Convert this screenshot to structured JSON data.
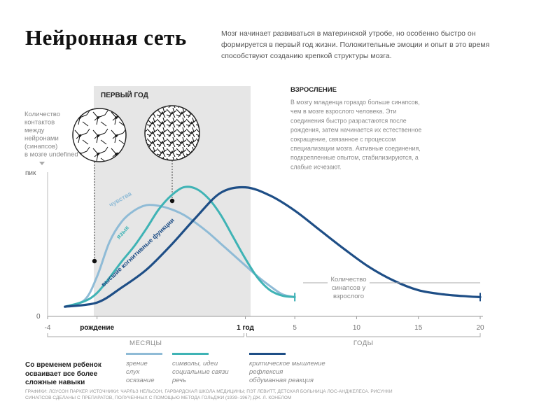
{
  "title": "Нейронная сеть",
  "intro": "Мозг начинает развиваться в материнской утробе, но особенно быстро он формируется в первый год жизни. Положительные эмоции и опыт в это время способствуют созданию крепкой структуры мозга.",
  "chart_data": {
    "type": "line",
    "title": "",
    "ylabel": "Количество контактов между нейронами (синапсов) в мозге",
    "y_ticks": [
      "пик",
      "0"
    ],
    "x_ticks": [
      {
        "pos": -4,
        "label": "-4"
      },
      {
        "pos": 0,
        "label": "рождение"
      },
      {
        "pos": 12,
        "label": "1 год"
      },
      {
        "pos": 16,
        "label": "5"
      },
      {
        "pos": 21,
        "label": "10"
      },
      {
        "pos": 26,
        "label": "15"
      },
      {
        "pos": 31,
        "label": "20"
      }
    ],
    "x_groups": [
      {
        "label": "МЕСЯЦЫ",
        "from": -4,
        "to": 12
      },
      {
        "label": "ГОДЫ",
        "from": 12,
        "to": 31
      }
    ],
    "xlim": [
      -4,
      31
    ],
    "ylim": [
      0,
      1
    ],
    "shaded_region": {
      "from": 0,
      "to": 12,
      "label": "ПЕРВЫЙ ГОД"
    },
    "series": [
      {
        "name": "чувства",
        "color": "#8fbbd6",
        "points": [
          [
            -2.6,
            0.03
          ],
          [
            -1,
            0.08
          ],
          [
            0,
            0.25
          ],
          [
            1,
            0.5
          ],
          [
            2,
            0.65
          ],
          [
            3,
            0.73
          ],
          [
            4,
            0.77
          ],
          [
            5,
            0.765
          ],
          [
            6,
            0.74
          ],
          [
            7,
            0.7
          ],
          [
            8,
            0.64
          ],
          [
            9,
            0.57
          ],
          [
            10,
            0.49
          ],
          [
            11,
            0.41
          ],
          [
            12,
            0.33
          ],
          [
            13,
            0.25
          ],
          [
            14,
            0.18
          ],
          [
            15,
            0.12
          ],
          [
            16,
            0.1
          ]
        ]
      },
      {
        "name": "язык",
        "color": "#3fb3b5",
        "points": [
          [
            -2.6,
            0.03
          ],
          [
            -1,
            0.07
          ],
          [
            0,
            0.13
          ],
          [
            1,
            0.24
          ],
          [
            2,
            0.36
          ],
          [
            3,
            0.47
          ],
          [
            4,
            0.6
          ],
          [
            5,
            0.74
          ],
          [
            6,
            0.84
          ],
          [
            7,
            0.9
          ],
          [
            8,
            0.89
          ],
          [
            9,
            0.82
          ],
          [
            10,
            0.7
          ],
          [
            11,
            0.54
          ],
          [
            12,
            0.38
          ],
          [
            13,
            0.24
          ],
          [
            14,
            0.15
          ],
          [
            15,
            0.11
          ],
          [
            16,
            0.1
          ]
        ]
      },
      {
        "name": "высшие когнитивные функции",
        "color": "#1e4e86",
        "points": [
          [
            -2.6,
            0.03
          ],
          [
            0,
            0.06
          ],
          [
            2,
            0.17
          ],
          [
            4,
            0.3
          ],
          [
            6,
            0.48
          ],
          [
            8,
            0.68
          ],
          [
            10,
            0.86
          ],
          [
            12,
            0.9
          ],
          [
            14,
            0.84
          ],
          [
            16,
            0.73
          ],
          [
            18,
            0.59
          ],
          [
            20,
            0.45
          ],
          [
            22,
            0.32
          ],
          [
            24,
            0.22
          ],
          [
            26,
            0.15
          ],
          [
            28,
            0.12
          ],
          [
            30,
            0.105
          ],
          [
            31,
            0.1
          ]
        ]
      }
    ],
    "annotations": {
      "adult_title": "ВЗРОСЛЕНИЕ",
      "adult_text": "В мозгу младенца гораздо больше синапсов, чем в мозге взрослого человека. Эти соединения быстро разрастаются после рождения, затем начинается их естественное сокращение, связанное с процессом специализации мозга. Активные соединения, подкрепленные опытом, стабилизируются, а слабые исчезают.",
      "adult_synapses": "Количество синапсов у взрослого"
    }
  },
  "legend": {
    "heading": "Со временем ребенок осваивает все более сложные навыки",
    "items": [
      {
        "color": "#8fbbd6",
        "lines": [
          "зрение",
          "слух",
          "осязание"
        ]
      },
      {
        "color": "#3fb3b5",
        "lines": [
          "символы, идеи",
          "социальные связи",
          "речь"
        ]
      },
      {
        "color": "#1e4e86",
        "lines": [
          "критическое мышление",
          "рефлексия",
          "обдуманная реакция"
        ]
      }
    ]
  },
  "source": "Графики: Лоусон Паркер. Источники: Чарльз Нельсон, Гарвардская школа медицины; Пэт Левитт, детская больница Лос-Анджелеса. Рисунки синапсов сделаны с препаратов, полученных с помощью метода Гольджи (1939–1967) Дж. Л. Конелом"
}
